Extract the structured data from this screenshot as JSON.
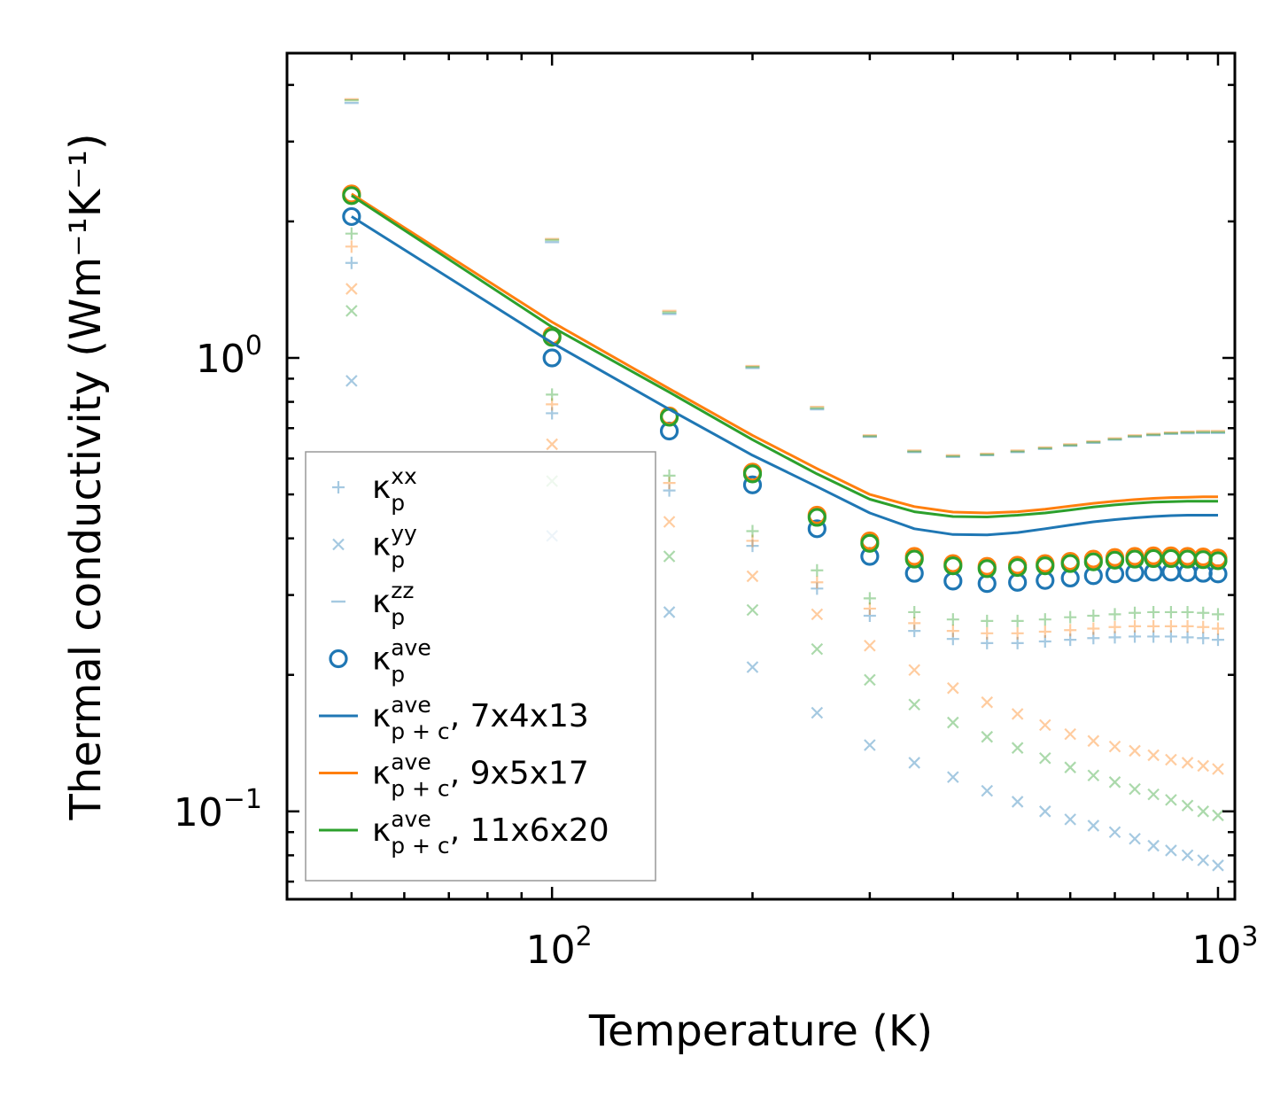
{
  "chart_data": {
    "type": "scatter",
    "scale": {
      "x": "log",
      "y": "log"
    },
    "xlabel": "Temperature (K)",
    "ylabel": "Thermal conductivity (Wm⁻¹K⁻¹)",
    "xlim": [
      40,
      1060
    ],
    "ylim": [
      0.064,
      4.7
    ],
    "x_ticks": [
      {
        "value": 100,
        "base": "10",
        "exp": "2"
      },
      {
        "value": 1000,
        "base": "10",
        "exp": "3"
      }
    ],
    "y_ticks": [
      {
        "value": 0.1,
        "base": "10",
        "exp": "−1"
      },
      {
        "value": 1,
        "base": "10",
        "exp": "0"
      }
    ],
    "x": [
      50,
      100,
      150,
      200,
      250,
      300,
      350,
      400,
      450,
      500,
      550,
      600,
      650,
      700,
      750,
      800,
      850,
      900,
      950,
      1000
    ],
    "colors": {
      "c7": "#1f77b4",
      "c9": "#ff7f0e",
      "c11": "#2ca02c"
    },
    "series": [
      {
        "name": "kxx 7x4x13",
        "marker": "+",
        "color": "#1f77b4",
        "alpha": 0.4,
        "values": [
          1.62,
          0.755,
          0.51,
          0.385,
          0.31,
          0.27,
          0.25,
          0.24,
          0.235,
          0.235,
          0.237,
          0.239,
          0.241,
          0.242,
          0.243,
          0.243,
          0.243,
          0.242,
          0.241,
          0.239
        ]
      },
      {
        "name": "kxx 9x5x17",
        "marker": "+",
        "color": "#ff7f0e",
        "alpha": 0.4,
        "values": [
          1.76,
          0.79,
          0.53,
          0.395,
          0.32,
          0.28,
          0.26,
          0.25,
          0.247,
          0.247,
          0.249,
          0.251,
          0.253,
          0.255,
          0.256,
          0.256,
          0.256,
          0.256,
          0.255,
          0.253
        ]
      },
      {
        "name": "kxx 11x6x20",
        "marker": "+",
        "color": "#2ca02c",
        "alpha": 0.4,
        "values": [
          1.88,
          0.83,
          0.55,
          0.415,
          0.34,
          0.295,
          0.275,
          0.265,
          0.263,
          0.263,
          0.265,
          0.268,
          0.27,
          0.272,
          0.274,
          0.275,
          0.275,
          0.275,
          0.274,
          0.272
        ]
      },
      {
        "name": "kyy 7x4x13",
        "marker": "x",
        "color": "#1f77b4",
        "alpha": 0.4,
        "values": [
          0.89,
          0.405,
          0.275,
          0.208,
          0.165,
          0.14,
          0.128,
          0.119,
          0.111,
          0.105,
          0.1,
          0.096,
          0.093,
          0.09,
          0.087,
          0.084,
          0.082,
          0.08,
          0.078,
          0.076
        ]
      },
      {
        "name": "kyy 9x5x17",
        "marker": "x",
        "color": "#ff7f0e",
        "alpha": 0.4,
        "values": [
          1.42,
          0.645,
          0.435,
          0.33,
          0.272,
          0.232,
          0.205,
          0.187,
          0.174,
          0.164,
          0.155,
          0.148,
          0.143,
          0.139,
          0.136,
          0.133,
          0.13,
          0.128,
          0.126,
          0.124
        ]
      },
      {
        "name": "kyy 11x6x20",
        "marker": "x",
        "color": "#2ca02c",
        "alpha": 0.4,
        "values": [
          1.27,
          0.535,
          0.365,
          0.278,
          0.228,
          0.195,
          0.172,
          0.157,
          0.146,
          0.138,
          0.131,
          0.125,
          0.12,
          0.116,
          0.112,
          0.109,
          0.106,
          0.103,
          0.1,
          0.098
        ]
      },
      {
        "name": "kzz 7x4x13",
        "marker": "_",
        "color": "#1f77b4",
        "alpha": 0.4,
        "values": [
          3.65,
          1.8,
          1.25,
          0.95,
          0.77,
          0.67,
          0.62,
          0.605,
          0.61,
          0.62,
          0.63,
          0.64,
          0.65,
          0.66,
          0.67,
          0.675,
          0.68,
          0.682,
          0.683,
          0.683
        ]
      },
      {
        "name": "kzz 9x5x17",
        "marker": "_",
        "color": "#ff7f0e",
        "alpha": 0.4,
        "values": [
          3.72,
          1.83,
          1.27,
          0.96,
          0.78,
          0.675,
          0.625,
          0.61,
          0.615,
          0.625,
          0.635,
          0.645,
          0.655,
          0.665,
          0.675,
          0.68,
          0.685,
          0.688,
          0.69,
          0.69
        ]
      },
      {
        "name": "kzz 11x6x20",
        "marker": "_",
        "color": "#2ca02c",
        "alpha": 0.4,
        "values": [
          3.7,
          1.82,
          1.26,
          0.955,
          0.775,
          0.672,
          0.622,
          0.607,
          0.612,
          0.622,
          0.632,
          0.642,
          0.652,
          0.662,
          0.672,
          0.677,
          0.682,
          0.685,
          0.686,
          0.686
        ]
      },
      {
        "name": "kave 7x4x13",
        "marker": "o",
        "color": "#1f77b4",
        "alpha": 1,
        "values": [
          2.05,
          1.0,
          0.69,
          0.525,
          0.42,
          0.365,
          0.335,
          0.322,
          0.318,
          0.32,
          0.323,
          0.327,
          0.331,
          0.334,
          0.336,
          0.337,
          0.337,
          0.336,
          0.335,
          0.334
        ]
      },
      {
        "name": "kave 9x5x17",
        "marker": "o",
        "color": "#ff7f0e",
        "alpha": 1,
        "values": [
          2.3,
          1.12,
          0.745,
          0.56,
          0.45,
          0.395,
          0.365,
          0.352,
          0.347,
          0.349,
          0.352,
          0.356,
          0.36,
          0.363,
          0.365,
          0.366,
          0.366,
          0.365,
          0.364,
          0.362
        ]
      },
      {
        "name": "kave 11x6x20",
        "marker": "o",
        "color": "#2ca02c",
        "alpha": 1,
        "values": [
          2.28,
          1.11,
          0.74,
          0.555,
          0.445,
          0.39,
          0.36,
          0.348,
          0.343,
          0.345,
          0.348,
          0.352,
          0.355,
          0.358,
          0.36,
          0.361,
          0.361,
          0.36,
          0.359,
          0.357
        ]
      },
      {
        "name": "kp+c ave 7x4x13",
        "marker": "line",
        "color": "#1f77b4",
        "alpha": 1,
        "values": [
          2.05,
          1.08,
          0.77,
          0.61,
          0.52,
          0.455,
          0.42,
          0.408,
          0.407,
          0.412,
          0.42,
          0.428,
          0.435,
          0.44,
          0.444,
          0.447,
          0.449,
          0.45,
          0.45,
          0.45
        ]
      },
      {
        "name": "kp+c ave 9x5x17",
        "marker": "line",
        "color": "#ff7f0e",
        "alpha": 1,
        "values": [
          2.3,
          1.2,
          0.855,
          0.675,
          0.57,
          0.5,
          0.47,
          0.457,
          0.455,
          0.458,
          0.464,
          0.471,
          0.478,
          0.483,
          0.487,
          0.49,
          0.492,
          0.493,
          0.494,
          0.494
        ]
      },
      {
        "name": "kp+c ave 11x6x20",
        "marker": "line",
        "color": "#2ca02c",
        "alpha": 1,
        "values": [
          2.28,
          1.17,
          0.84,
          0.66,
          0.555,
          0.488,
          0.458,
          0.447,
          0.446,
          0.45,
          0.455,
          0.462,
          0.469,
          0.474,
          0.478,
          0.481,
          0.482,
          0.483,
          0.483,
          0.483
        ]
      }
    ],
    "legend": {
      "position": "lower-left",
      "entries": [
        {
          "marker": "+",
          "color": "#1f77b4",
          "alpha": 0.4,
          "main": "κ",
          "sub": "p",
          "sup": "xx",
          "suffix": ""
        },
        {
          "marker": "x",
          "color": "#1f77b4",
          "alpha": 0.4,
          "main": "κ",
          "sub": "p",
          "sup": "yy",
          "suffix": ""
        },
        {
          "marker": "_",
          "color": "#1f77b4",
          "alpha": 0.4,
          "main": "κ",
          "sub": "p",
          "sup": "zz",
          "suffix": ""
        },
        {
          "marker": "o",
          "color": "#1f77b4",
          "alpha": 1,
          "main": "κ",
          "sub": "p",
          "sup": "ave",
          "suffix": ""
        },
        {
          "marker": "line",
          "color": "#1f77b4",
          "alpha": 1,
          "main": "κ",
          "sub": "p + c",
          "sup": "ave",
          "suffix": ", 7x4x13"
        },
        {
          "marker": "line",
          "color": "#ff7f0e",
          "alpha": 1,
          "main": "κ",
          "sub": "p + c",
          "sup": "ave",
          "suffix": ", 9x5x17"
        },
        {
          "marker": "line",
          "color": "#2ca02c",
          "alpha": 1,
          "main": "κ",
          "sub": "p + c",
          "sup": "ave",
          "suffix": ", 11x6x20"
        }
      ]
    }
  }
}
